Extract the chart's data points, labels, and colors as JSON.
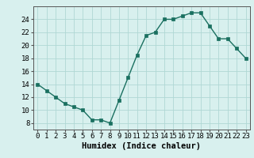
{
  "x": [
    0,
    1,
    2,
    3,
    4,
    5,
    6,
    7,
    8,
    9,
    10,
    11,
    12,
    13,
    14,
    15,
    16,
    17,
    18,
    19,
    20,
    21,
    22,
    23
  ],
  "y": [
    14,
    13,
    12,
    11,
    10.5,
    10,
    8.5,
    8.5,
    8,
    11.5,
    15,
    18.5,
    21.5,
    22,
    24,
    24,
    24.5,
    25,
    25,
    23,
    21,
    21,
    19.5,
    18
  ],
  "line_color": "#1a7060",
  "marker": "s",
  "marker_size": 2.5,
  "bg_color": "#d8f0ee",
  "grid_color": "#b0d8d4",
  "xlabel": "Humidex (Indice chaleur)",
  "xlim": [
    -0.5,
    23.5
  ],
  "ylim": [
    7,
    26
  ],
  "yticks": [
    8,
    10,
    12,
    14,
    16,
    18,
    20,
    22,
    24
  ],
  "xticks": [
    0,
    1,
    2,
    3,
    4,
    5,
    6,
    7,
    8,
    9,
    10,
    11,
    12,
    13,
    14,
    15,
    16,
    17,
    18,
    19,
    20,
    21,
    22,
    23
  ],
  "xlabel_fontsize": 7.5,
  "tick_fontsize": 6.5
}
